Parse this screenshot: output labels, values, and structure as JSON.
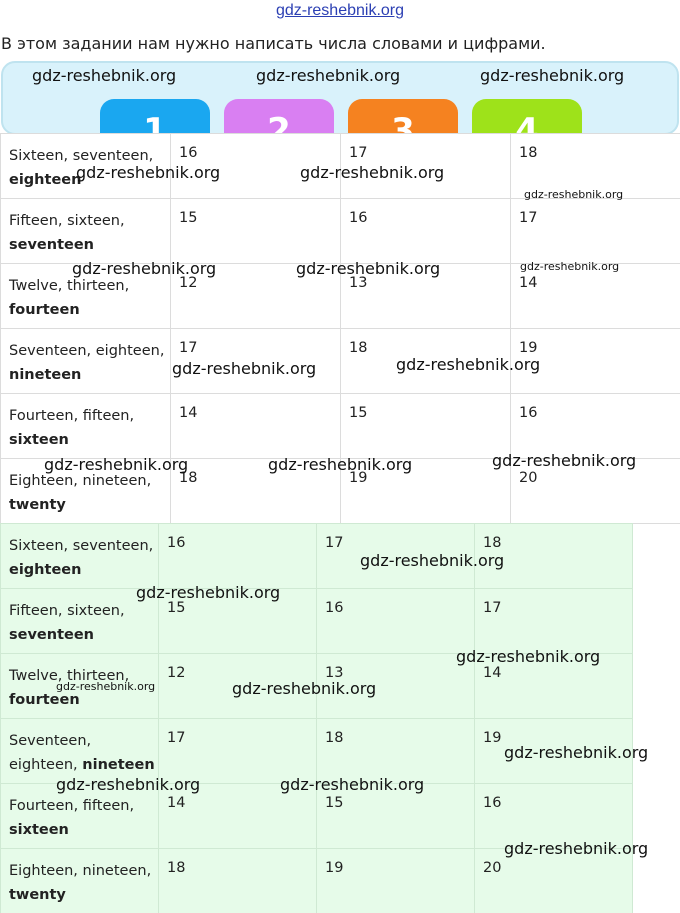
{
  "header": {
    "site_link": "gdz-reshebnik.org",
    "intro": "В этом задании нам нужно написать числа словами и цифрами."
  },
  "banner": {
    "chips": [
      {
        "label": "1",
        "color": "#1aa7f0"
      },
      {
        "label": "2",
        "color": "#d97ff2"
      },
      {
        "label": "3",
        "color": "#f58220"
      },
      {
        "label": "4",
        "color": "#9ee21a"
      }
    ]
  },
  "table_white": {
    "rows": [
      {
        "words": "Sixteen, seventeen,",
        "bold": "eighteen",
        "n1": "16",
        "n2": "17",
        "n3": "18"
      },
      {
        "words": "Fifteen, sixteen,",
        "bold": "seventeen",
        "n1": "15",
        "n2": "16",
        "n3": "17"
      },
      {
        "words": "Twelve, thirteen,",
        "bold": "fourteen",
        "n1": "12",
        "n2": "13",
        "n3": "14"
      },
      {
        "words": "Seventeen, eighteen,",
        "bold": "nineteen",
        "n1": "17",
        "n2": "18",
        "n3": "19"
      },
      {
        "words": "Fourteen, fifteen,",
        "bold": "sixteen",
        "n1": "14",
        "n2": "15",
        "n3": "16"
      },
      {
        "words": "Eighteen, nineteen,",
        "bold": "twenty",
        "n1": "18",
        "n2": "19",
        "n3": "20"
      }
    ]
  },
  "table_green": {
    "rows": [
      {
        "words": "Sixteen, seventeen,",
        "bold": "eighteen",
        "n1": "16",
        "n2": "17",
        "n3": "18"
      },
      {
        "words": "Fifteen, sixteen,",
        "bold": "seventeen",
        "n1": "15",
        "n2": "16",
        "n3": "17"
      },
      {
        "words": "Twelve, thirteen,",
        "bold": "fourteen",
        "n1": "12",
        "n2": "13",
        "n3": "14"
      },
      {
        "words": "Seventeen, eighteen,",
        "bold": "nineteen",
        "n1": "17",
        "n2": "18",
        "n3": "19"
      },
      {
        "words": "Fourteen, fifteen,",
        "bold": "sixteen",
        "n1": "14",
        "n2": "15",
        "n3": "16"
      },
      {
        "words": "Eighteen, nineteen,",
        "bold": "twenty",
        "n1": "18",
        "n2": "19",
        "n3": "20"
      }
    ]
  },
  "watermark": "gdz-reshebnik.org"
}
